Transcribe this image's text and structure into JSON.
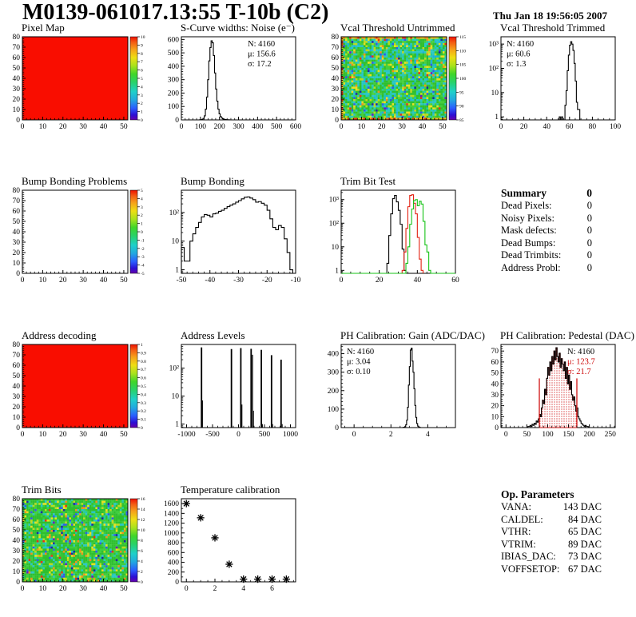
{
  "header": {
    "title": "M0139-061017.13:55 T-10b (C2)",
    "timestamp": "Thu Jan 18 19:56:05 2007"
  },
  "palette": {
    "rainbow": [
      [
        0,
        "#6600ad"
      ],
      [
        0.06,
        "#2b0fd4"
      ],
      [
        0.14,
        "#2a5cff"
      ],
      [
        0.24,
        "#22a8e0"
      ],
      [
        0.34,
        "#1fd0c9"
      ],
      [
        0.45,
        "#28d26b"
      ],
      [
        0.55,
        "#3fd62a"
      ],
      [
        0.65,
        "#a8e21c"
      ],
      [
        0.75,
        "#eede14"
      ],
      [
        0.85,
        "#f6a01a"
      ],
      [
        0.93,
        "#f45f14"
      ],
      [
        1,
        "#ee1100"
      ]
    ]
  },
  "summary": {
    "title": "Summary",
    "value": "0",
    "rows": [
      {
        "label": "Dead Pixels:",
        "value": "0"
      },
      {
        "label": "Noisy Pixels:",
        "value": "0"
      },
      {
        "label": "Mask defects:",
        "value": "0"
      },
      {
        "label": "Dead Bumps:",
        "value": "0"
      },
      {
        "label": "Dead Trimbits:",
        "value": "0"
      },
      {
        "label": "Address Probl:",
        "value": "0"
      }
    ]
  },
  "op_parameters": {
    "title": "Op. Parameters",
    "rows": [
      {
        "label": "VANA:",
        "value": "143 DAC"
      },
      {
        "label": "CALDEL:",
        "value": "84 DAC"
      },
      {
        "label": "VTHR:",
        "value": "65 DAC"
      },
      {
        "label": "VTRIM:",
        "value": "89 DAC"
      },
      {
        "label": "IBIAS_DAC:",
        "value": "73 DAC"
      },
      {
        "label": "VOFFSETOP:",
        "value": "67 DAC"
      }
    ]
  },
  "chart_data": [
    {
      "title": "Pixel Map",
      "type": "heatmap",
      "fill": "solid",
      "fill_color": "#f90d00",
      "x": {
        "min": 0,
        "max": 52,
        "ticks": [
          0,
          10,
          20,
          30,
          40,
          50
        ],
        "minor": 2
      },
      "y": {
        "min": 0,
        "max": 80,
        "ticks": [
          0,
          10,
          20,
          30,
          40,
          50,
          60,
          70,
          80
        ],
        "minor": 2
      },
      "colorbar": {
        "labels": [
          "10",
          "9",
          "8",
          "7",
          "6",
          "5",
          "4",
          "3",
          "2",
          "1",
          "0"
        ]
      }
    },
    {
      "title": "S-Curve widths: Noise (e⁻)",
      "type": "histogram",
      "x": {
        "min": 0,
        "max": 600,
        "ticks": [
          0,
          100,
          200,
          300,
          400,
          500,
          600
        ],
        "minor": 20
      },
      "y": {
        "min": 0,
        "max": 620,
        "ticks": [
          0,
          100,
          200,
          300,
          400,
          500,
          600
        ],
        "minor": 20
      },
      "stats": {
        "pos": "tr",
        "lines": [
          [
            "N: 4160",
            "#000000"
          ],
          [
            "μ: 156.6",
            "#000000"
          ],
          [
            "σ: 17.2",
            "#000000"
          ]
        ]
      },
      "series": [
        {
          "color": "#000000",
          "x0": 96,
          "binw": 6,
          "counts": [
            1,
            2,
            5,
            12,
            30,
            80,
            170,
            300,
            440,
            540,
            590,
            575,
            480,
            350,
            230,
            140,
            80,
            45,
            25,
            14,
            8,
            5,
            3,
            2,
            1,
            1
          ]
        }
      ]
    },
    {
      "title": "Vcal Threshold Untrimmed",
      "type": "heatmap",
      "fill": "noise",
      "seed": 7,
      "palette": [
        [
          "#2fbf2f",
          28
        ],
        [
          "#45cf3a",
          16
        ],
        [
          "#23c9a2",
          9
        ],
        [
          "#28c6c6",
          15
        ],
        [
          "#1ab2d8",
          5
        ],
        [
          "#b9da20",
          7
        ],
        [
          "#e8e020",
          4
        ],
        [
          "#f0921a",
          2.2
        ],
        [
          "#e63214",
          1
        ],
        [
          "#2f5ce8",
          2
        ],
        [
          "#1b2aa4",
          0.7
        ],
        [
          "#6a18c4",
          0.3
        ]
      ],
      "edge_palette": [
        [
          "#f0921a",
          30
        ],
        [
          "#e8c020",
          22
        ],
        [
          "#e63214",
          14
        ],
        [
          "#2fbf2f",
          22
        ],
        [
          "#b9da20",
          12
        ]
      ],
      "x": {
        "min": 0,
        "max": 52,
        "ticks": [
          0,
          10,
          20,
          30,
          40,
          50
        ],
        "minor": 2
      },
      "y": {
        "min": 0,
        "max": 80,
        "ticks": [
          0,
          10,
          20,
          30,
          40,
          50,
          60,
          70,
          80
        ],
        "minor": 2
      },
      "colorbar": {
        "labels": [
          "115",
          "110",
          "105",
          "100",
          "95",
          "90",
          "85"
        ]
      }
    },
    {
      "title": "Vcal Threshold Trimmed",
      "type": "histogram",
      "ylog": true,
      "x": {
        "min": 0,
        "max": 100,
        "ticks": [
          0,
          20,
          40,
          60,
          80,
          100
        ],
        "minor": 5
      },
      "y": {
        "min": 0.75,
        "max": 2000
      },
      "stats": {
        "pos": "tl",
        "lines": [
          [
            "N: 4160",
            "#000000"
          ],
          [
            "μ: 60.6",
            "#000000"
          ],
          [
            "σ: 1.3",
            "#000000"
          ]
        ]
      },
      "series": [
        {
          "color": "#000000",
          "x0": 51,
          "binw": 1,
          "counts": [
            1,
            0,
            1,
            0,
            0,
            3,
            12,
            80,
            350,
            900,
            1250,
            1000,
            550,
            160,
            30,
            4,
            2,
            2
          ]
        }
      ]
    },
    {
      "title": "Bump Bonding Problems",
      "type": "heatmap",
      "fill": "none",
      "x": {
        "min": 0,
        "max": 52,
        "ticks": [
          0,
          10,
          20,
          30,
          40,
          50
        ],
        "minor": 2
      },
      "y": {
        "min": 0,
        "max": 80,
        "ticks": [
          0,
          10,
          20,
          30,
          40,
          50,
          60,
          70,
          80
        ],
        "minor": 2
      },
      "colorbar": {
        "labels": [
          "5",
          "4",
          "3",
          "2",
          "1",
          "0",
          "-1",
          "-2",
          "-3",
          "-4",
          "-5"
        ]
      }
    },
    {
      "title": "Bump Bonding",
      "type": "histogram",
      "ylog": true,
      "x": {
        "min": -50,
        "max": -10,
        "ticks": [
          -50,
          -40,
          -30,
          -20,
          -10
        ],
        "minor": 2
      },
      "y": {
        "min": 0.75,
        "max": 600
      },
      "series": [
        {
          "color": "#000000",
          "x0": -50,
          "binw": 1,
          "counts": [
            6,
            2,
            2,
            10,
            18,
            30,
            45,
            70,
            85,
            80,
            70,
            90,
            95,
            110,
            120,
            140,
            160,
            180,
            200,
            230,
            260,
            300,
            340,
            350,
            320,
            280,
            230,
            240,
            210,
            180,
            120,
            60,
            30,
            25,
            35,
            30,
            12,
            4,
            1,
            0
          ]
        }
      ]
    },
    {
      "title": "Trim Bit Test",
      "type": "histogram",
      "ylog": true,
      "x": {
        "min": 0,
        "max": 60,
        "ticks": [
          0,
          20,
          40,
          60
        ],
        "minor": 5
      },
      "y": {
        "min": 0.75,
        "max": 2500
      },
      "series": [
        {
          "color": "#000000",
          "x0": 24,
          "binw": 1,
          "counts": [
            2,
            30,
            250,
            1100,
            1500,
            800,
            350,
            90,
            8,
            1
          ]
        },
        {
          "color": "#e32011",
          "x0": 32,
          "binw": 1,
          "counts": [
            1,
            6,
            60,
            500,
            1500,
            1600,
            700,
            250,
            25,
            3,
            1
          ]
        },
        {
          "color": "#17c317",
          "x0": 0,
          "binw": 1,
          "counts": [
            0,
            0,
            0,
            0,
            0,
            0,
            0,
            0,
            0,
            0,
            0,
            0,
            0,
            0,
            0,
            0,
            0,
            0,
            0,
            0,
            0,
            0,
            0,
            0,
            0,
            0,
            0,
            0,
            0,
            0,
            0,
            0,
            0,
            0,
            2,
            10,
            90,
            400,
            900,
            1000,
            550,
            850,
            650,
            120,
            12,
            6,
            1,
            0,
            0,
            0,
            0,
            0,
            0,
            0,
            0,
            0,
            0,
            0,
            0,
            0
          ]
        }
      ]
    },
    {
      "title": "Address decoding",
      "type": "heatmap",
      "fill": "solid",
      "fill_color": "#f90d00",
      "x": {
        "min": 0,
        "max": 52,
        "ticks": [
          0,
          10,
          20,
          30,
          40,
          50
        ],
        "minor": 2
      },
      "y": {
        "min": 0,
        "max": 80,
        "ticks": [
          0,
          10,
          20,
          30,
          40,
          50,
          60,
          70,
          80
        ],
        "minor": 2
      },
      "colorbar": {
        "labels": [
          "1",
          "0.9",
          "0.8",
          "0.7",
          "0.6",
          "0.5",
          "0.4",
          "0.3",
          "0.2",
          "0.1",
          "0"
        ]
      }
    },
    {
      "title": "Address Levels",
      "type": "histogram",
      "ylog": true,
      "x": {
        "min": -1100,
        "max": 1100,
        "ticks": [
          -1000,
          -500,
          0,
          500,
          1000
        ],
        "minor": 100
      },
      "y": {
        "min": 0.75,
        "max": 700
      },
      "series": [
        {
          "color": "#000000",
          "bars": [
            [
              -712,
              550,
              28
            ],
            [
              -694,
              7,
              16
            ],
            [
              -136,
              480,
              28
            ],
            [
              45,
              520,
              28
            ],
            [
              66,
              5,
              16
            ],
            [
              243,
              490,
              28
            ],
            [
              270,
              300,
              18
            ],
            [
              289,
              3,
              14
            ],
            [
              440,
              450,
              28
            ],
            [
              462,
              1,
              14
            ],
            [
              636,
              290,
              28
            ],
            [
              658,
              1,
              14
            ],
            [
              820,
              200,
              28
            ],
            [
              842,
              1,
              14
            ]
          ]
        }
      ]
    },
    {
      "title": "PH Calibration: Gain (ADC/DAC)",
      "type": "histogram",
      "x": {
        "min": -0.7,
        "max": 5.5,
        "ticks": [
          0,
          2,
          4
        ],
        "minor": 0.5
      },
      "y": {
        "min": 0,
        "max": 450,
        "ticks": [
          0,
          100,
          200,
          300,
          400
        ],
        "minor": 20
      },
      "stats": {
        "pos": "tl",
        "lines": [
          [
            "N: 4160",
            "#000000"
          ],
          [
            "μ: 3.04",
            "#000000"
          ],
          [
            "σ: 0.10",
            "#000000"
          ]
        ]
      },
      "series": [
        {
          "color": "#000000",
          "x0": 2.65,
          "binw": 0.05,
          "counts": [
            1,
            2,
            5,
            15,
            40,
            110,
            230,
            330,
            420,
            430,
            360,
            300,
            210,
            120,
            55,
            22,
            8,
            3,
            1
          ]
        }
      ]
    },
    {
      "title": "PH Calibration: Pedestal (DAC)",
      "type": "histogram",
      "x": {
        "min": -12,
        "max": 262,
        "ticks": [
          0,
          50,
          100,
          150,
          200,
          250
        ],
        "minor": 10
      },
      "y": {
        "min": 0,
        "max": 76,
        "ticks": [
          0,
          10,
          20,
          30,
          40,
          50,
          60,
          70
        ],
        "minor": 2
      },
      "stats": {
        "pos": "tr",
        "lines": [
          [
            "N: 4160",
            "#000000"
          ],
          [
            "μ: 123.7",
            "#cc0000"
          ],
          [
            "σ: 21.7",
            "#cc0000"
          ]
        ]
      },
      "vlines": [
        {
          "x": 80,
          "h": 45,
          "color": "#cc0000"
        },
        {
          "x": 170,
          "h": 45,
          "color": "#cc0000"
        }
      ],
      "series": [
        {
          "color": "#cc0000",
          "dots": true,
          "x0": 80,
          "binw": 2.5,
          "counts": [
            12,
            10,
            18,
            25,
            22,
            35,
            30,
            45,
            55,
            48,
            60,
            52,
            65,
            58,
            70,
            62,
            73,
            65,
            60,
            68,
            55,
            63,
            58,
            52,
            60,
            45,
            55,
            40,
            48,
            35,
            42,
            30,
            25,
            28,
            20,
            15
          ]
        },
        {
          "color": "#000000",
          "x0": 50,
          "binw": 2.5,
          "counts": [
            0,
            1,
            1,
            2,
            1,
            3,
            2,
            4,
            3,
            6,
            5,
            8,
            12,
            10,
            18,
            25,
            22,
            35,
            30,
            45,
            55,
            48,
            60,
            52,
            65,
            58,
            70,
            62,
            73,
            65,
            60,
            68,
            55,
            63,
            58,
            52,
            60,
            45,
            55,
            40,
            48,
            35,
            42,
            30,
            25,
            28,
            20,
            15,
            18,
            10,
            8,
            6,
            4,
            3,
            2,
            1,
            2,
            1,
            1,
            0
          ]
        }
      ]
    },
    {
      "title": "Trim Bits",
      "type": "heatmap",
      "fill": "noise",
      "seed": 13,
      "palette": [
        [
          "#2fbf2f",
          44
        ],
        [
          "#3ecf3e",
          20
        ],
        [
          "#28c6c6",
          9
        ],
        [
          "#23c9a2",
          6
        ],
        [
          "#b9da20",
          6
        ],
        [
          "#e8e020",
          4
        ],
        [
          "#f0921a",
          3
        ],
        [
          "#e63214",
          1
        ],
        [
          "#2f5ce8",
          3
        ],
        [
          "#1b2aa4",
          1.2
        ],
        [
          "#6a18c4",
          0.4
        ]
      ],
      "x": {
        "min": 0,
        "max": 52,
        "ticks": [
          0,
          10,
          20,
          30,
          40,
          50
        ],
        "minor": 2
      },
      "y": {
        "min": 0,
        "max": 80,
        "ticks": [
          0,
          10,
          20,
          30,
          40,
          50,
          60,
          70,
          80
        ],
        "minor": 2
      },
      "colorbar": {
        "labels": [
          "16",
          "14",
          "12",
          "10",
          "8",
          "6",
          "4",
          "2",
          "0"
        ]
      }
    },
    {
      "title": "Temperature calibration",
      "type": "scatter",
      "x": {
        "min": -0.35,
        "max": 7.65,
        "ticks": [
          0,
          2,
          4,
          6
        ],
        "minor": 0.5
      },
      "y": {
        "min": 0,
        "max": 1700,
        "ticks": [
          0,
          200,
          400,
          600,
          800,
          1000,
          1200,
          1400,
          1600
        ],
        "minor": 100
      },
      "points": [
        [
          0,
          1600
        ],
        [
          1,
          1310
        ],
        [
          2,
          900
        ],
        [
          3,
          360
        ],
        [
          4,
          55
        ],
        [
          5,
          55
        ],
        [
          6,
          55
        ],
        [
          7,
          55
        ]
      ]
    }
  ]
}
